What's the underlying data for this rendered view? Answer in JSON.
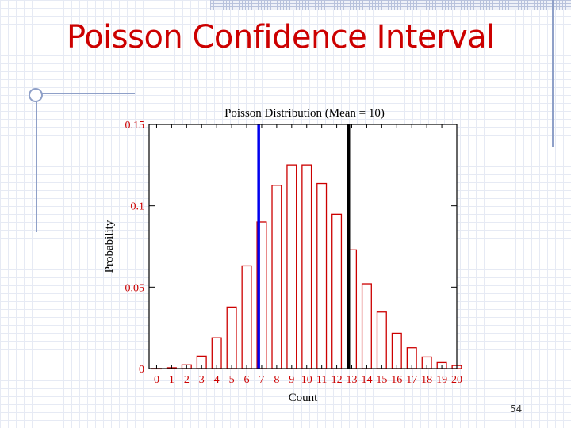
{
  "slide": {
    "title": "Poisson Confidence Interval",
    "page_number": "54"
  },
  "colors": {
    "title": "#cc0000",
    "bars": "#cc0000",
    "lower_bound_line": "#0000ee",
    "upper_bound_line": "#000000"
  },
  "chart_data": {
    "type": "bar",
    "title": "Poisson Distribution (Mean = 10)",
    "xlabel": "Count",
    "ylabel": "Probability",
    "categories": [
      "0",
      "1",
      "2",
      "3",
      "4",
      "5",
      "6",
      "7",
      "8",
      "9",
      "10",
      "11",
      "12",
      "13",
      "14",
      "15",
      "16",
      "17",
      "18",
      "19",
      "20"
    ],
    "values": [
      5e-05,
      0.0005,
      0.0023,
      0.0076,
      0.0189,
      0.0378,
      0.0631,
      0.0901,
      0.1126,
      0.1251,
      0.1251,
      0.1137,
      0.0948,
      0.0729,
      0.0521,
      0.0347,
      0.0217,
      0.0128,
      0.0071,
      0.0037,
      0.0019
    ],
    "ylim": [
      0,
      0.15
    ],
    "yticks": [
      0,
      0.05,
      0.1,
      0.15
    ],
    "ytick_labels": [
      "0",
      "0.05",
      "0.1",
      "0.15"
    ],
    "xlim": [
      -0.5,
      20
    ],
    "vertical_lines": [
      {
        "x": 6.8,
        "color": "#0000ee"
      },
      {
        "x": 12.8,
        "color": "#000000"
      }
    ],
    "grid": false
  }
}
